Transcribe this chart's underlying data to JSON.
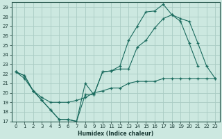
{
  "xlabel": "Humidex (Indice chaleur)",
  "bg_color": "#cce8e0",
  "line_color": "#1a6b5e",
  "grid_color": "#aaccc4",
  "xlim": [
    -0.5,
    23.5
  ],
  "ylim": [
    17,
    29.5
  ],
  "yticks": [
    17,
    18,
    19,
    20,
    21,
    22,
    23,
    24,
    25,
    26,
    27,
    28,
    29
  ],
  "xticks": [
    0,
    1,
    2,
    3,
    4,
    5,
    6,
    7,
    8,
    9,
    10,
    11,
    12,
    13,
    14,
    15,
    16,
    17,
    18,
    19,
    20,
    21,
    22,
    23
  ],
  "line1_x": [
    0,
    1,
    2,
    3,
    4,
    5,
    6,
    7,
    8,
    9,
    10,
    11,
    12,
    13,
    14,
    15,
    16,
    17,
    18,
    19,
    20,
    21
  ],
  "line1_y": [
    22.2,
    21.8,
    20.2,
    19.2,
    18.2,
    17.2,
    17.2,
    17.0,
    19.8,
    19.8,
    22.2,
    22.3,
    22.8,
    25.5,
    27.0,
    28.5,
    28.6,
    29.3,
    28.2,
    27.5,
    25.2,
    22.8
  ],
  "line2_x": [
    0,
    1,
    2,
    3,
    4,
    5,
    6,
    7,
    8,
    9,
    10,
    11,
    12,
    13,
    14,
    15,
    16,
    17,
    18,
    19,
    20,
    21,
    22,
    23
  ],
  "line2_y": [
    22.2,
    21.8,
    20.2,
    19.2,
    18.2,
    17.2,
    17.2,
    17.0,
    21.0,
    19.8,
    22.2,
    22.3,
    22.5,
    22.5,
    24.8,
    25.5,
    26.8,
    27.8,
    28.2,
    27.8,
    27.5,
    25.2,
    22.8,
    21.5
  ],
  "line3_x": [
    0,
    1,
    2,
    3,
    4,
    5,
    6,
    7,
    8,
    9,
    10,
    11,
    12,
    13,
    14,
    15,
    16,
    17,
    18,
    19,
    20,
    21,
    22,
    23
  ],
  "line3_y": [
    22.2,
    21.5,
    20.2,
    19.5,
    19.0,
    19.0,
    19.0,
    19.2,
    19.5,
    20.0,
    20.2,
    20.5,
    20.5,
    21.0,
    21.2,
    21.2,
    21.2,
    21.5,
    21.5,
    21.5,
    21.5,
    21.5,
    21.5,
    21.5
  ]
}
